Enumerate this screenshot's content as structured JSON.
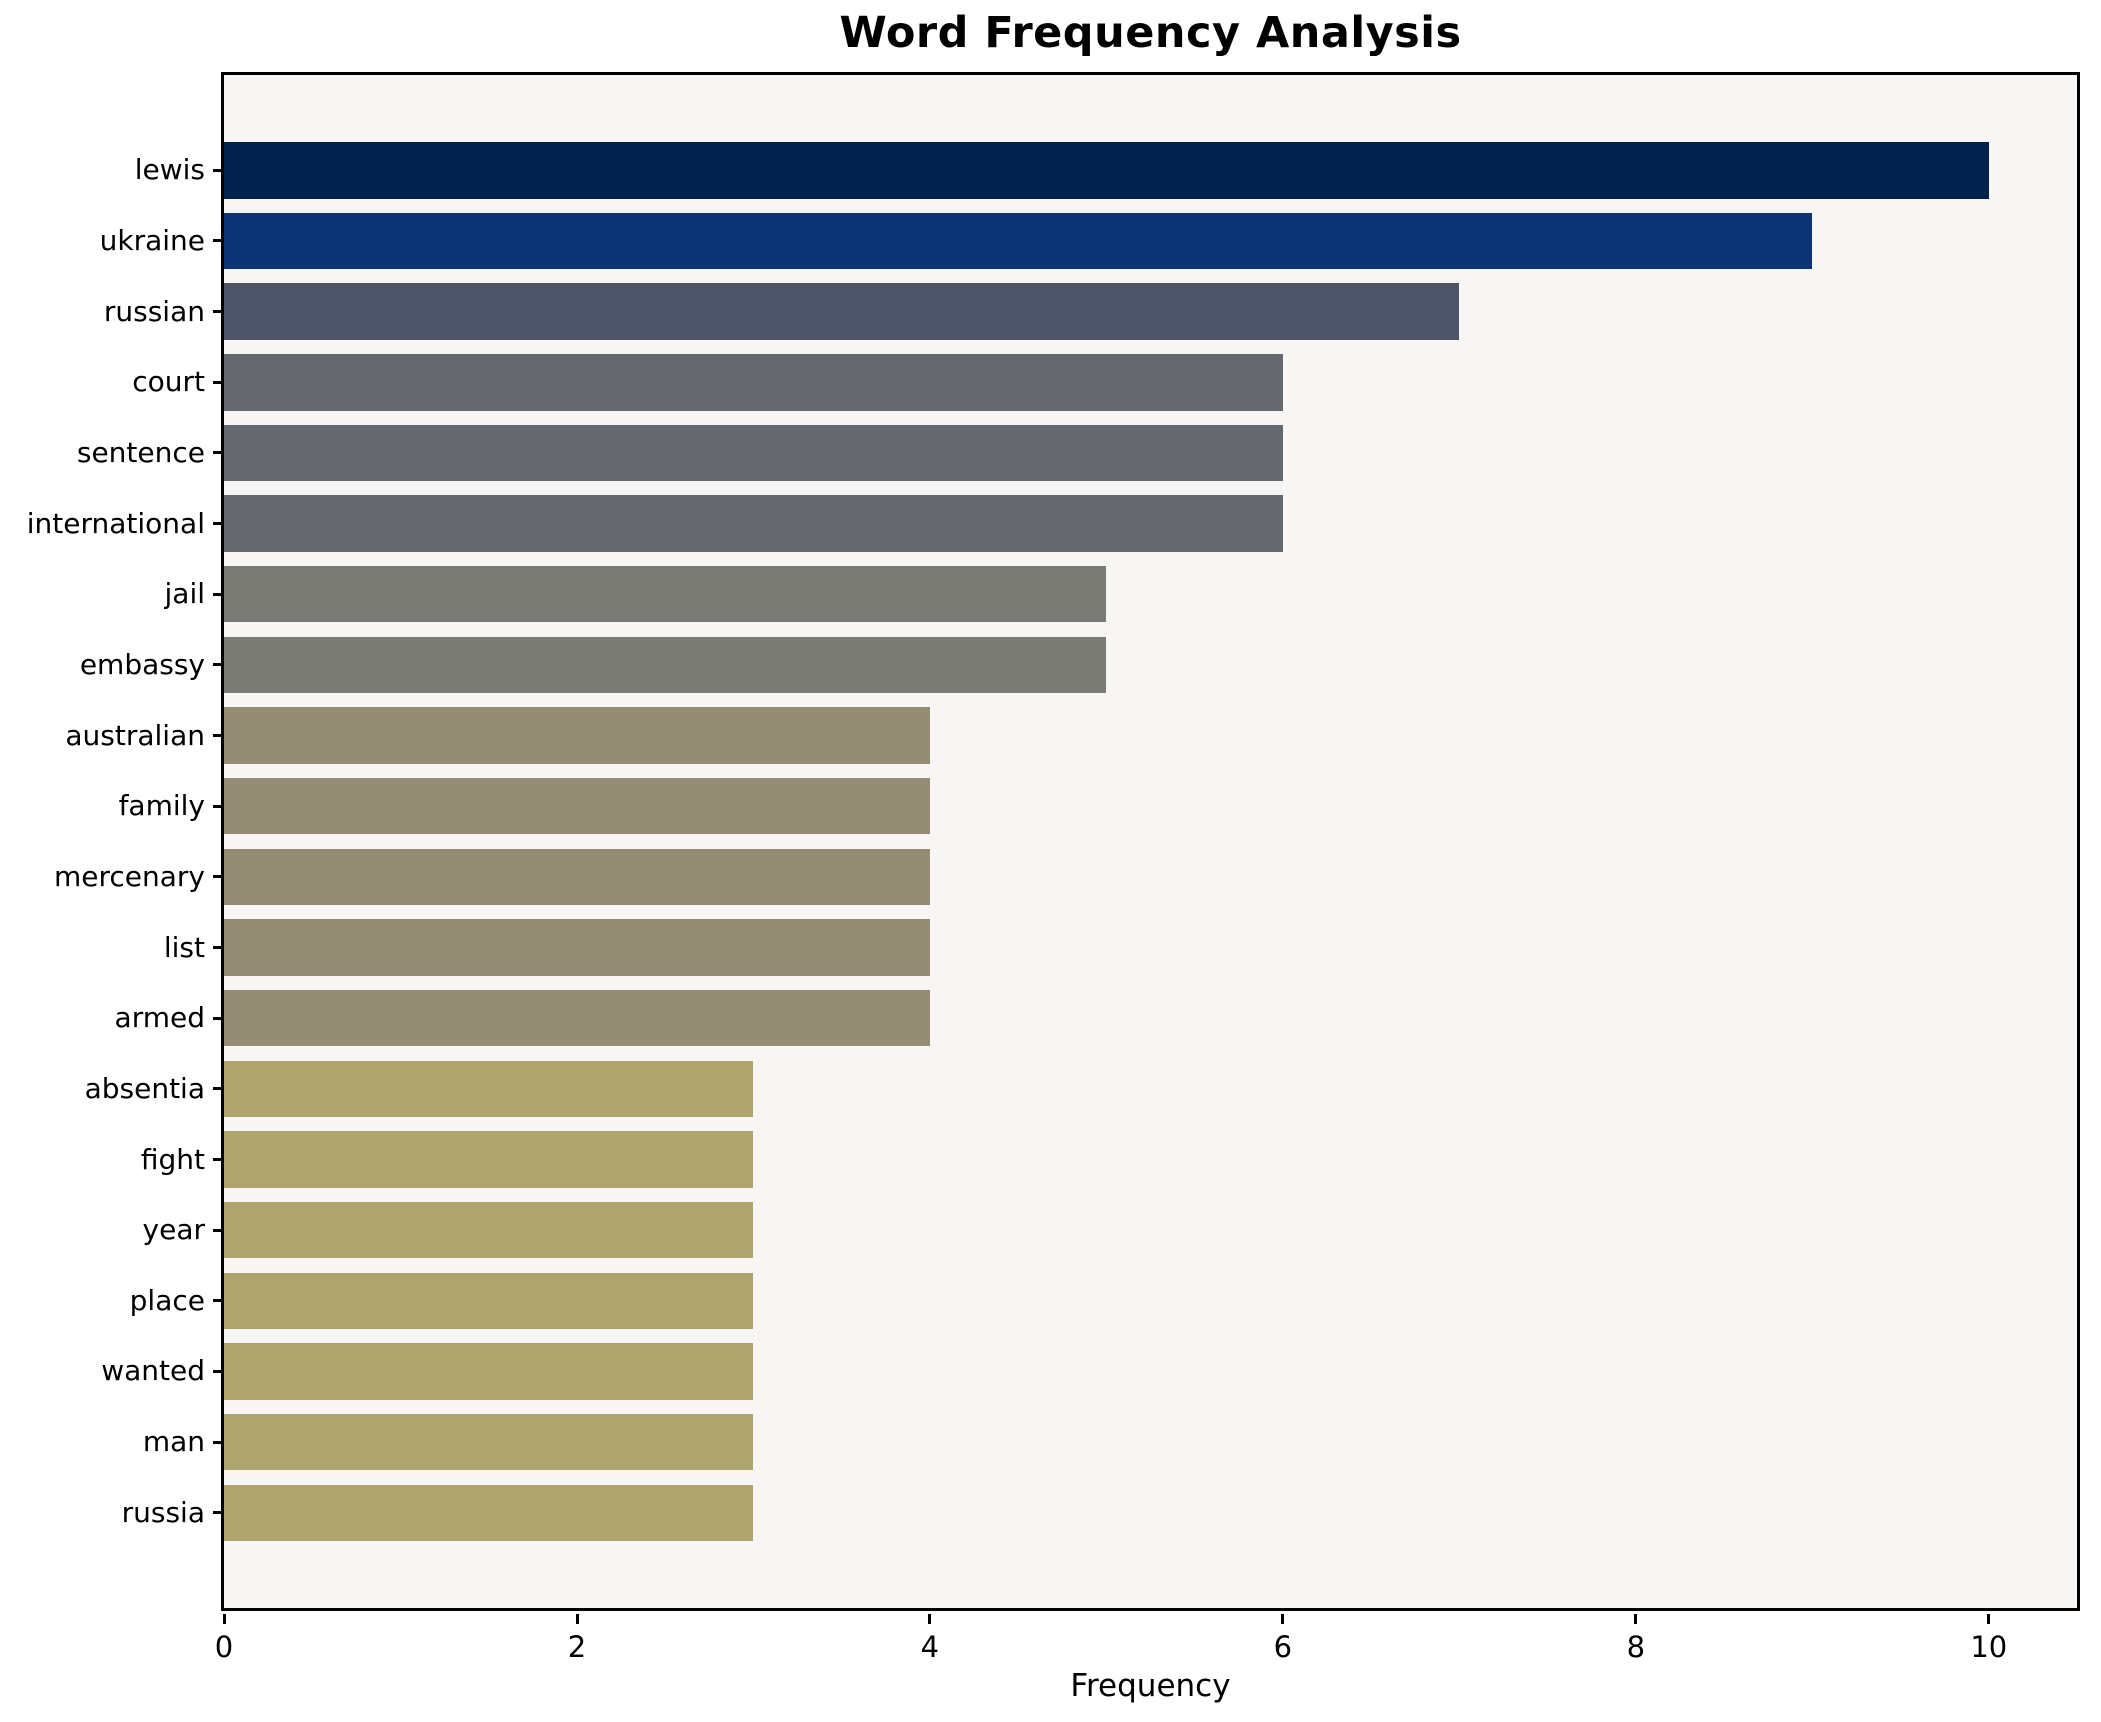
{
  "chart_data": {
    "type": "bar",
    "orientation": "horizontal",
    "title": "Word Frequency Analysis",
    "xlabel": "Frequency",
    "ylabel": "",
    "categories": [
      "lewis",
      "ukraine",
      "russian",
      "court",
      "sentence",
      "international",
      "jail",
      "embassy",
      "australian",
      "family",
      "mercenary",
      "list",
      "armed",
      "absentia",
      "fight",
      "year",
      "place",
      "wanted",
      "man",
      "russia"
    ],
    "values": [
      10,
      9,
      7,
      6,
      6,
      6,
      5,
      5,
      4,
      4,
      4,
      4,
      4,
      3,
      3,
      3,
      3,
      3,
      3,
      3
    ],
    "bar_colors": [
      "#01224d",
      "#0d3474",
      "#4d5468",
      "#65686f",
      "#65686f",
      "#65686f",
      "#7a7b74",
      "#7a7b74",
      "#948d73",
      "#948d73",
      "#948d73",
      "#948d73",
      "#948d73",
      "#ada46e",
      "#ada46e",
      "#ada46e",
      "#ada46e",
      "#ada46e",
      "#ada46e",
      "#ada46e"
    ],
    "xticks": [
      0,
      2,
      4,
      6,
      8,
      10
    ],
    "xlim": [
      0,
      10.5
    ],
    "grid": false,
    "legend": "none",
    "plot_background": "#f7f6f4",
    "figure_background": "#ffffff",
    "spine_color": "#000000"
  }
}
